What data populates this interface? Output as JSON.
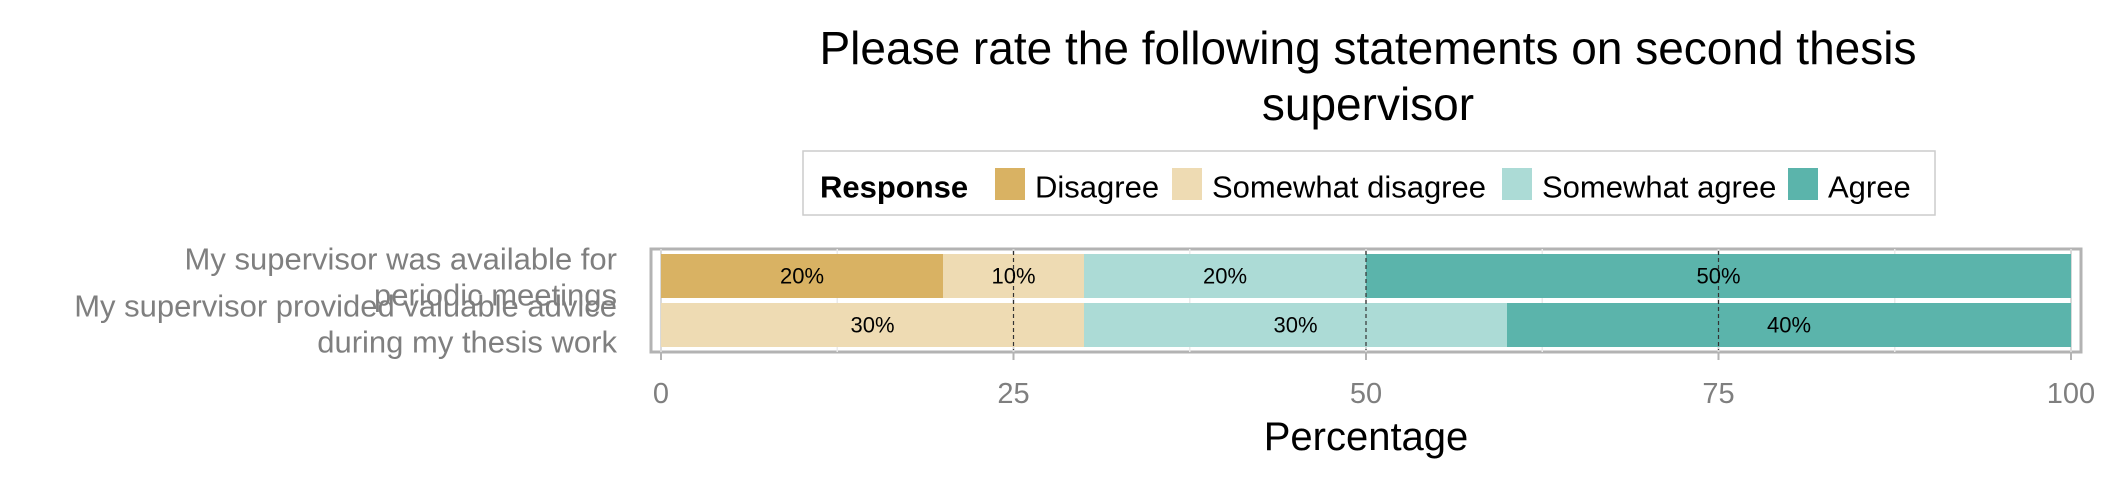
{
  "chart_data": {
    "type": "bar",
    "orientation": "horizontal",
    "stacked": true,
    "title_lines": [
      "Please rate the following statements on second thesis",
      "supervisor"
    ],
    "xlabel": "Percentage",
    "ylabel": "",
    "xlim": [
      0,
      100
    ],
    "x_ticks": [
      "0",
      "25",
      "50",
      "75",
      "100"
    ],
    "grid": true,
    "legend": {
      "title": "Response",
      "placement": "top",
      "entries": [
        "Disagree",
        "Somewhat disagree",
        "Somewhat agree",
        "Agree"
      ]
    },
    "categories": [
      [
        "My supervisor was available for",
        "periodic meetings"
      ],
      [
        "My supervisor provided valuable advice",
        "during my thesis work"
      ]
    ],
    "series": [
      {
        "name": "Disagree",
        "color": "#D9B263",
        "values": [
          20,
          0
        ],
        "labels": [
          "20%",
          ""
        ]
      },
      {
        "name": "Somewhat disagree",
        "color": "#EEDBB3",
        "values": [
          10,
          30
        ],
        "labels": [
          "10%",
          "30%"
        ]
      },
      {
        "name": "Somewhat agree",
        "color": "#ACDBD6",
        "values": [
          20,
          30
        ],
        "labels": [
          "20%",
          "30%"
        ]
      },
      {
        "name": "Agree",
        "color": "#5BB4AB",
        "values": [
          50,
          40
        ],
        "labels": [
          "50%",
          "40%"
        ]
      }
    ]
  }
}
